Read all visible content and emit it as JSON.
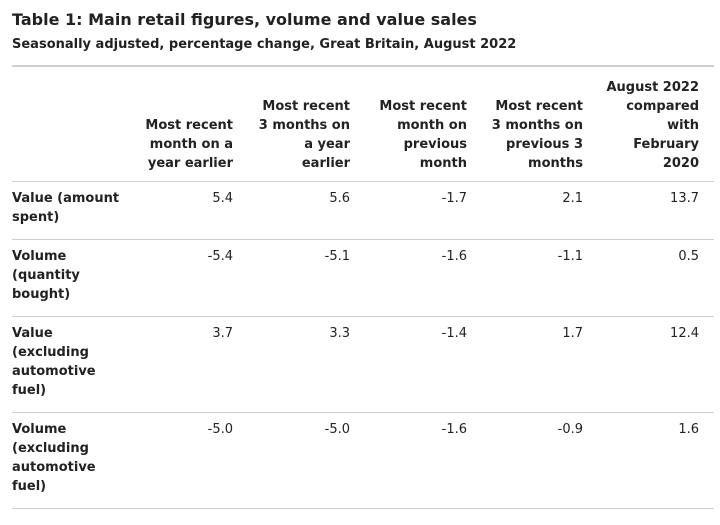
{
  "title": "Table 1: Main retail figures, volume and value sales",
  "subtitle": "Seasonally adjusted, percentage change, Great Britain, August 2022",
  "table": {
    "columns": [
      "",
      "Most recent month on a year earlier",
      "Most recent 3 months on a year earlier",
      "Most recent month on previous month",
      "Most recent 3 months on previous 3 months",
      "August 2022 compared with February 2020"
    ],
    "rows": [
      {
        "label": "Value (amount spent)",
        "values": [
          "5.4",
          "5.6",
          "-1.7",
          "2.1",
          "13.7"
        ]
      },
      {
        "label": "Volume (quantity bought)",
        "values": [
          "-5.4",
          "-5.1",
          "-1.6",
          "-1.1",
          "0.5"
        ]
      },
      {
        "label": "Value (excluding automotive fuel)",
        "values": [
          "3.7",
          "3.3",
          "-1.4",
          "1.7",
          "12.4"
        ]
      },
      {
        "label": "Volume (excluding automotive fuel)",
        "values": [
          "-5.0",
          "-5.0",
          "-1.6",
          "-0.9",
          "1.6"
        ]
      }
    ]
  }
}
